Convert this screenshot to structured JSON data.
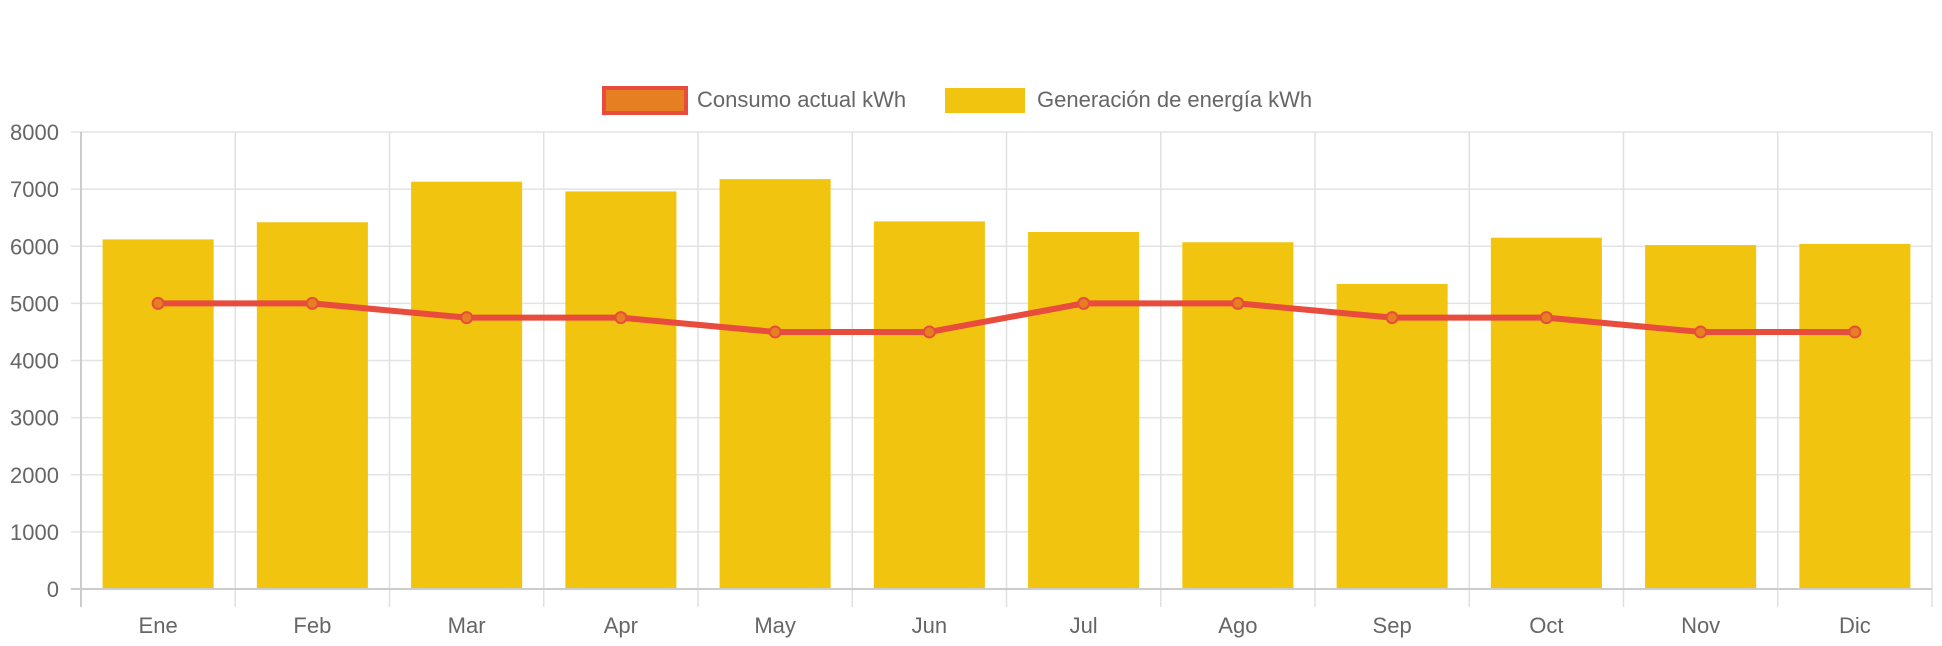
{
  "chart_data": {
    "type": "bar",
    "title": "",
    "xlabel": "",
    "ylabel": "",
    "ylim": [
      0,
      8000
    ],
    "y_ticks": [
      0,
      1000,
      2000,
      3000,
      4000,
      5000,
      6000,
      7000,
      8000
    ],
    "grid": true,
    "legend_position": "top-center",
    "categories": [
      "Ene",
      "Feb",
      "Mar",
      "Apr",
      "May",
      "Jun",
      "Jul",
      "Ago",
      "Sep",
      "Oct",
      "Nov",
      "Dic"
    ],
    "series": [
      {
        "name": "Consumo actual kWh",
        "type": "line",
        "color": "#e74c3c",
        "point_color": "#e67e22",
        "values": [
          5000,
          5000,
          4750,
          4750,
          4500,
          4500,
          5000,
          5000,
          4750,
          4750,
          4500,
          4500
        ]
      },
      {
        "name": "Generación de energía kWh",
        "type": "bar",
        "color": "#f1c40f",
        "values": [
          6120,
          6420,
          7130,
          6960,
          7175,
          6435,
          6250,
          6070,
          5340,
          6150,
          6020,
          6040
        ]
      }
    ]
  }
}
